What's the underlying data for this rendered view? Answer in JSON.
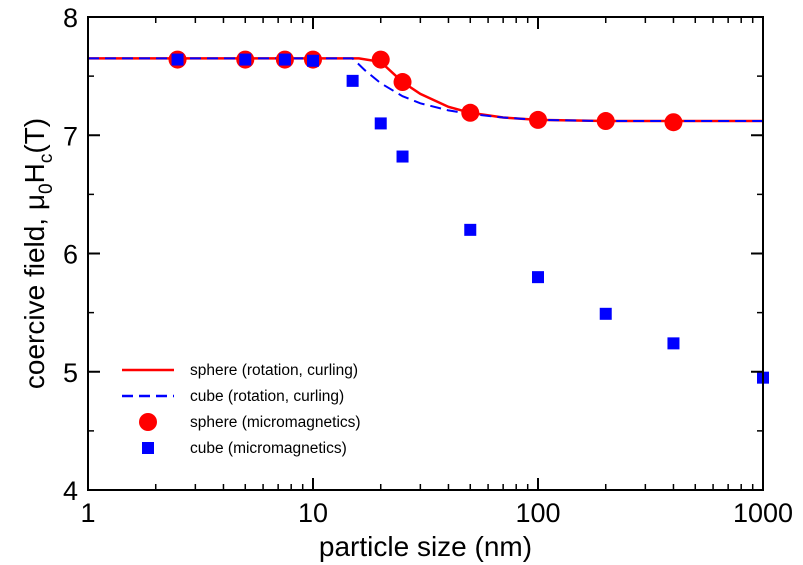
{
  "chart_data": {
    "type": "scatter",
    "xlabel": "particle size (nm)",
    "ylabel": "coercive field, μ₀H_c(T)",
    "ylabel_parts": {
      "main": "coercive field, μ",
      "sub0": "0",
      "mid": "H",
      "subc": "c",
      "tail": "(T)"
    },
    "xscale": "log",
    "xlim": [
      1,
      1000
    ],
    "ylim": [
      4,
      8
    ],
    "x_ticks": [
      1,
      10,
      100,
      1000
    ],
    "x_tick_labels": [
      "1",
      "10",
      "100",
      "1000"
    ],
    "y_ticks": [
      4,
      5,
      6,
      7,
      8
    ],
    "y_tick_labels": [
      "4",
      "5",
      "6",
      "7",
      "8"
    ],
    "grid": false,
    "legend_position": "lower-left",
    "series": [
      {
        "name": "sphere (rotation, curling)",
        "kind": "line",
        "style": "solid",
        "color": "#ff0000",
        "x": [
          1,
          2,
          5,
          10,
          16,
          20,
          25,
          30,
          40,
          50,
          70,
          100,
          200,
          400,
          1000
        ],
        "y": [
          7.65,
          7.65,
          7.65,
          7.65,
          7.65,
          7.62,
          7.45,
          7.35,
          7.24,
          7.19,
          7.15,
          7.13,
          7.12,
          7.12,
          7.12
        ]
      },
      {
        "name": "cube (rotation,  curling)",
        "kind": "line",
        "style": "dashed",
        "color": "#0000ff",
        "x": [
          1,
          2,
          5,
          10,
          15,
          17,
          20,
          25,
          30,
          40,
          50,
          70,
          100,
          200,
          400,
          1000
        ],
        "y": [
          7.65,
          7.65,
          7.65,
          7.65,
          7.65,
          7.55,
          7.44,
          7.33,
          7.27,
          7.21,
          7.18,
          7.15,
          7.13,
          7.12,
          7.12,
          7.12
        ]
      },
      {
        "name": "sphere (micromagnetics)",
        "kind": "marker",
        "marker": "circle",
        "color": "#ff0000",
        "x": [
          2.5,
          5,
          7.5,
          10,
          20,
          25,
          50,
          100,
          200,
          400
        ],
        "y": [
          7.64,
          7.64,
          7.64,
          7.64,
          7.64,
          7.45,
          7.19,
          7.13,
          7.12,
          7.11
        ]
      },
      {
        "name": "cube (micromagnetics)",
        "kind": "marker",
        "marker": "square",
        "color": "#0000ff",
        "x": [
          2.5,
          5,
          7.5,
          10,
          15,
          20,
          25,
          50,
          100,
          200,
          400,
          1000
        ],
        "y": [
          7.64,
          7.64,
          7.64,
          7.63,
          7.46,
          7.1,
          6.82,
          6.2,
          5.8,
          5.49,
          5.24,
          4.95
        ]
      }
    ]
  }
}
